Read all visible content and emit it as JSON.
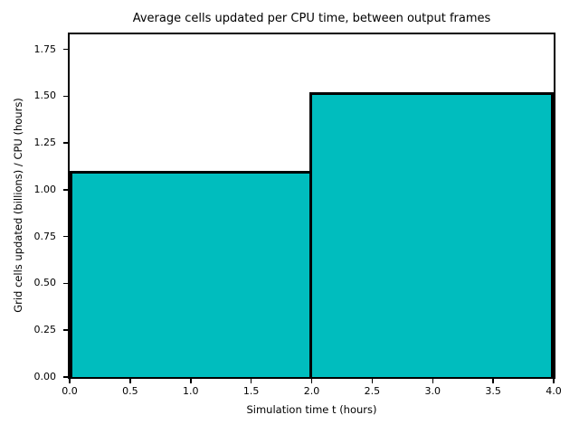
{
  "chart_data": {
    "type": "bar",
    "title": "Average cells updated per CPU time, between output frames",
    "xlabel": "Simulation time t (hours)",
    "ylabel": "Grid cells updated (billions) / CPU (hours)",
    "bars": [
      {
        "x_start": 0.0,
        "x_end": 2.0,
        "value": 1.1
      },
      {
        "x_start": 2.0,
        "x_end": 4.0,
        "value": 1.52
      }
    ],
    "xlim": [
      0.0,
      4.0
    ],
    "ylim": [
      0.0,
      1.83
    ],
    "x_ticks": [
      0.0,
      0.5,
      1.0,
      1.5,
      2.0,
      2.5,
      3.0,
      3.5,
      4.0
    ],
    "x_tick_labels": [
      "0.0",
      "0.5",
      "1.0",
      "1.5",
      "2.0",
      "2.5",
      "3.0",
      "3.5",
      "4.0"
    ],
    "y_ticks": [
      0.0,
      0.25,
      0.5,
      0.75,
      1.0,
      1.25,
      1.5,
      1.75
    ],
    "y_tick_labels": [
      "0.00",
      "0.25",
      "0.50",
      "0.75",
      "1.00",
      "1.25",
      "1.50",
      "1.75"
    ],
    "bar_fill_color": "#00BDBE",
    "bar_edge_color": "#000000",
    "axis_color": "#000000",
    "background_color": "#ffffff",
    "grid": false,
    "legend": null
  }
}
